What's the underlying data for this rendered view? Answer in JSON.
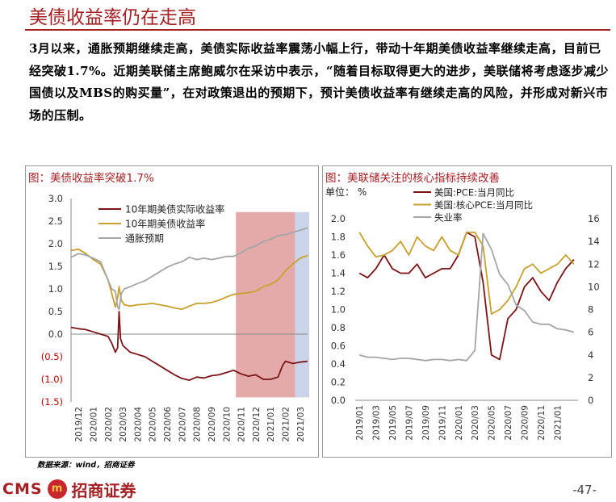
{
  "slide": {
    "title": "美债收益率仍在走高",
    "body": "3月以来，通胀预期继续走高，美债实际收益率震荡小幅上行，带动十年期美债收益率继续走高，目前已经突破1.7%。近期美联储主席鲍威尔在采访中表示，“随着目标取得更大的进步，美联储将考虑逐步减少国债以及MBS的购买量”，在对政策退出的预期下，预计美债收益率有继续走高的风险，并形成对新兴市场的压制。",
    "source": "数据来源：wind，招商证券",
    "logo_cms": "CMS",
    "logo_mark": "m",
    "logo_cn": "招商证券",
    "page_number": "-47-"
  },
  "chart_data": [
    {
      "type": "line",
      "title": "图：美债收益率突破1.7%",
      "x_ticks": [
        "2019/12",
        "2020/01",
        "2020/02",
        "2020/03",
        "2020/04",
        "2020/05",
        "2020/06",
        "2020/07",
        "2020/08",
        "2020/09",
        "2020/10",
        "2020/11",
        "2020/12",
        "2021/01",
        "2021/02",
        "2021/03"
      ],
      "y_ticks": [
        "3.0",
        "2.5",
        "2.0",
        "1.5",
        "1.0",
        "0.5",
        "0.0",
        "(0.5)",
        "(1.0)",
        "(1.5)"
      ],
      "ylim": [
        -1.5,
        3.0
      ],
      "legend": "top-center",
      "colors": {
        "real_yield": "#7a1416",
        "nominal_yield": "#c8a02e",
        "breakeven": "#a5a5a5",
        "shade_red": "#df9b9b",
        "shade_blue": "#c3cce6"
      },
      "shaded_ranges": [
        {
          "from": "2020/11",
          "to": "2021/03",
          "color": "red"
        },
        {
          "from": "2021/03",
          "to": "2021/04",
          "color": "blue"
        }
      ],
      "series": [
        {
          "name": "10年期美债实际收益率",
          "key": "real_yield",
          "points": [
            [
              0,
              0.15
            ],
            [
              0.5,
              0.12
            ],
            [
              1,
              0.1
            ],
            [
              1.5,
              0.05
            ],
            [
              2,
              0.0
            ],
            [
              2.5,
              -0.05
            ],
            [
              2.75,
              -0.2
            ],
            [
              3.0,
              -0.4
            ],
            [
              3.15,
              -0.3
            ],
            [
              3.25,
              0.5
            ],
            [
              3.35,
              -0.1
            ],
            [
              3.5,
              -0.25
            ],
            [
              4,
              -0.4
            ],
            [
              4.5,
              -0.45
            ],
            [
              5,
              -0.5
            ],
            [
              5.5,
              -0.6
            ],
            [
              6,
              -0.7
            ],
            [
              6.5,
              -0.8
            ],
            [
              7,
              -0.9
            ],
            [
              7.5,
              -0.98
            ],
            [
              8,
              -1.02
            ],
            [
              8.5,
              -0.95
            ],
            [
              9,
              -0.97
            ],
            [
              9.5,
              -0.92
            ],
            [
              10,
              -0.9
            ],
            [
              10.5,
              -0.85
            ],
            [
              11,
              -0.8
            ],
            [
              11.5,
              -0.88
            ],
            [
              12,
              -0.93
            ],
            [
              12.5,
              -0.9
            ],
            [
              13,
              -1.0
            ],
            [
              13.5,
              -1.0
            ],
            [
              14,
              -0.95
            ],
            [
              14.3,
              -0.7
            ],
            [
              14.5,
              -0.6
            ],
            [
              15,
              -0.65
            ],
            [
              15.5,
              -0.62
            ],
            [
              16,
              -0.6
            ]
          ]
        },
        {
          "name": "10年期美债收益率",
          "key": "nominal_yield",
          "points": [
            [
              0,
              1.85
            ],
            [
              0.5,
              1.88
            ],
            [
              1,
              1.78
            ],
            [
              1.5,
              1.65
            ],
            [
              2,
              1.55
            ],
            [
              2.5,
              1.2
            ],
            [
              2.75,
              0.9
            ],
            [
              3.0,
              0.6
            ],
            [
              3.15,
              0.8
            ],
            [
              3.25,
              1.05
            ],
            [
              3.4,
              0.75
            ],
            [
              3.6,
              0.65
            ],
            [
              4,
              0.62
            ],
            [
              4.5,
              0.65
            ],
            [
              5,
              0.66
            ],
            [
              5.5,
              0.68
            ],
            [
              6,
              0.65
            ],
            [
              6.5,
              0.62
            ],
            [
              7,
              0.58
            ],
            [
              7.5,
              0.55
            ],
            [
              8,
              0.62
            ],
            [
              8.5,
              0.68
            ],
            [
              9,
              0.68
            ],
            [
              9.5,
              0.7
            ],
            [
              10,
              0.75
            ],
            [
              10.5,
              0.82
            ],
            [
              11,
              0.88
            ],
            [
              11.5,
              0.9
            ],
            [
              12,
              0.92
            ],
            [
              12.5,
              0.95
            ],
            [
              13,
              1.05
            ],
            [
              13.5,
              1.1
            ],
            [
              14,
              1.2
            ],
            [
              14.5,
              1.4
            ],
            [
              15,
              1.55
            ],
            [
              15.5,
              1.68
            ],
            [
              16,
              1.74
            ]
          ]
        },
        {
          "name": "通胀预期",
          "key": "breakeven",
          "points": [
            [
              0,
              1.7
            ],
            [
              0.5,
              1.78
            ],
            [
              1,
              1.75
            ],
            [
              1.5,
              1.68
            ],
            [
              2,
              1.6
            ],
            [
              2.5,
              1.2
            ],
            [
              2.75,
              1.0
            ],
            [
              3.0,
              0.95
            ],
            [
              3.15,
              0.6
            ],
            [
              3.25,
              0.55
            ],
            [
              3.4,
              0.9
            ],
            [
              3.6,
              1.0
            ],
            [
              4,
              1.05
            ],
            [
              4.5,
              1.12
            ],
            [
              5,
              1.18
            ],
            [
              5.5,
              1.28
            ],
            [
              6,
              1.38
            ],
            [
              6.5,
              1.48
            ],
            [
              7,
              1.55
            ],
            [
              7.5,
              1.6
            ],
            [
              8,
              1.7
            ],
            [
              8.5,
              1.65
            ],
            [
              9,
              1.68
            ],
            [
              9.5,
              1.65
            ],
            [
              10,
              1.68
            ],
            [
              10.5,
              1.72
            ],
            [
              11,
              1.72
            ],
            [
              11.5,
              1.8
            ],
            [
              12,
              1.9
            ],
            [
              12.5,
              1.95
            ],
            [
              13,
              2.05
            ],
            [
              13.5,
              2.1
            ],
            [
              14,
              2.18
            ],
            [
              14.5,
              2.2
            ],
            [
              15,
              2.25
            ],
            [
              15.5,
              2.3
            ],
            [
              16,
              2.35
            ]
          ]
        }
      ]
    },
    {
      "type": "line",
      "title": "图：美联储关注的核心指标持续改善",
      "unit_label": "单位：  %",
      "x_ticks": [
        "2019/01",
        "2019/03",
        "2019/05",
        "2019/07",
        "2019/09",
        "2019/11",
        "2020/01",
        "2020/03",
        "2020/05",
        "2020/07",
        "2020/09",
        "2020/11",
        "2021/01"
      ],
      "y_left_ticks": [
        "2.0",
        "1.8",
        "1.6",
        "1.4",
        "1.2",
        "1.0",
        "0.8",
        "0.6",
        "0.4",
        "0.2",
        "0.0"
      ],
      "y_right_ticks": [
        "16",
        "14",
        "12",
        "10",
        "8",
        "6",
        "4",
        "2",
        "0"
      ],
      "ylim_left": [
        0.0,
        2.0
      ],
      "ylim_right": [
        0,
        16
      ],
      "legend": "top-center",
      "colors": {
        "pce": "#7a1416",
        "core_pce": "#c8a02e",
        "unemployment": "#a5a5a5"
      },
      "series": [
        {
          "name": "美国:PCE:当月同比",
          "key": "pce",
          "axis": "left",
          "values": [
            1.4,
            1.35,
            1.45,
            1.6,
            1.45,
            1.4,
            1.4,
            1.5,
            1.35,
            1.4,
            1.45,
            1.45,
            1.6,
            1.85,
            1.8,
            1.3,
            0.5,
            0.45,
            0.9,
            1.0,
            1.25,
            1.35,
            1.2,
            1.1,
            1.3,
            1.45,
            1.55
          ]
        },
        {
          "name": "美国:核心PCE:当月同比",
          "key": "core_pce",
          "axis": "left",
          "values": [
            1.85,
            1.7,
            1.58,
            1.6,
            1.65,
            1.75,
            1.6,
            1.8,
            1.7,
            1.65,
            1.8,
            1.65,
            1.6,
            1.85,
            1.85,
            1.7,
            0.95,
            1.0,
            1.1,
            1.25,
            1.45,
            1.5,
            1.4,
            1.45,
            1.5,
            1.6,
            1.5
          ]
        },
        {
          "name": "失业率",
          "key": "unemployment",
          "axis": "right",
          "values": [
            4.0,
            3.8,
            3.8,
            3.7,
            3.6,
            3.7,
            3.7,
            3.6,
            3.5,
            3.6,
            3.6,
            3.5,
            3.6,
            3.5,
            4.4,
            14.7,
            13.3,
            11.1,
            10.2,
            8.4,
            7.9,
            6.9,
            6.7,
            6.7,
            6.3,
            6.2,
            6.0
          ]
        }
      ]
    }
  ]
}
